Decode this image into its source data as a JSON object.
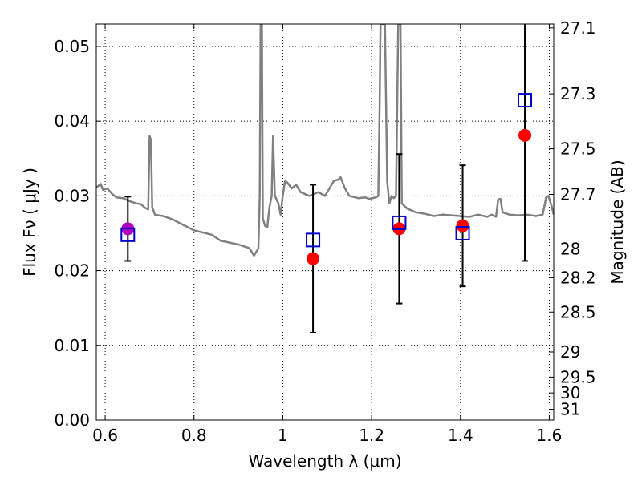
{
  "chart_data": {
    "type": "scatter",
    "xlabel": "Wavelength  λ (μm)",
    "ylabel": "Flux  Fν  ( μJy )",
    "y2label": "Magnitude (AB)",
    "xlim": [
      0.58,
      1.61
    ],
    "ylim": [
      0.0,
      0.053
    ],
    "grid": true,
    "x_ticks": [
      {
        "value": 0.6,
        "label": "0.6"
      },
      {
        "value": 0.8,
        "label": "0.8"
      },
      {
        "value": 1.0,
        "label": "1"
      },
      {
        "value": 1.2,
        "label": "1.2"
      },
      {
        "value": 1.4,
        "label": "1.4"
      },
      {
        "value": 1.6,
        "label": "1.6"
      }
    ],
    "y_ticks": [
      {
        "value": 0.0,
        "label": "0.00"
      },
      {
        "value": 0.01,
        "label": "0.01"
      },
      {
        "value": 0.02,
        "label": "0.02"
      },
      {
        "value": 0.03,
        "label": "0.03"
      },
      {
        "value": 0.04,
        "label": "0.04"
      },
      {
        "value": 0.05,
        "label": "0.05"
      }
    ],
    "mag_ticks": [
      {
        "mag": 27.1,
        "label": "27.1"
      },
      {
        "mag": 27.3,
        "label": "27.3"
      },
      {
        "mag": 27.5,
        "label": "27.5"
      },
      {
        "mag": 27.7,
        "label": "27.7"
      },
      {
        "mag": 28.0,
        "label": "28"
      },
      {
        "mag": 28.2,
        "label": "28.2"
      },
      {
        "mag": 28.5,
        "label": "28.5"
      },
      {
        "mag": 29.0,
        "label": "29"
      },
      {
        "mag": 29.5,
        "label": "29.5"
      },
      {
        "mag": 30.0,
        "label": "30"
      },
      {
        "mag": 31.0,
        "label": "31"
      }
    ],
    "series": [
      {
        "style": "line",
        "color": "#808080",
        "points": [
          [
            0.58,
            0.0311
          ],
          [
            0.59,
            0.0316
          ],
          [
            0.595,
            0.0308
          ],
          [
            0.605,
            0.031
          ],
          [
            0.615,
            0.0303
          ],
          [
            0.625,
            0.0298
          ],
          [
            0.64,
            0.0297
          ],
          [
            0.655,
            0.0293
          ],
          [
            0.67,
            0.029
          ],
          [
            0.68,
            0.0289
          ],
          [
            0.69,
            0.0284
          ],
          [
            0.697,
            0.0282
          ],
          [
            0.7,
            0.038
          ],
          [
            0.703,
            0.0375
          ],
          [
            0.706,
            0.0285
          ],
          [
            0.712,
            0.0275
          ],
          [
            0.73,
            0.0273
          ],
          [
            0.75,
            0.0269
          ],
          [
            0.78,
            0.026
          ],
          [
            0.8,
            0.0254
          ],
          [
            0.84,
            0.0248
          ],
          [
            0.86,
            0.024
          ],
          [
            0.9,
            0.0235
          ],
          [
            0.925,
            0.023
          ],
          [
            0.935,
            0.022
          ],
          [
            0.945,
            0.023
          ],
          [
            0.948,
            0.03
          ],
          [
            0.95,
            0.053
          ],
          [
            0.953,
            0.053
          ],
          [
            0.955,
            0.027
          ],
          [
            0.96,
            0.026
          ],
          [
            0.965,
            0.0258
          ],
          [
            0.97,
            0.0285
          ],
          [
            0.975,
            0.03
          ],
          [
            0.978,
            0.038
          ],
          [
            0.982,
            0.03
          ],
          [
            0.99,
            0.029
          ],
          [
            0.995,
            0.0275
          ],
          [
            1.0,
            0.03
          ],
          [
            1.005,
            0.032
          ],
          [
            1.01,
            0.0318
          ],
          [
            1.02,
            0.031
          ],
          [
            1.03,
            0.0315
          ],
          [
            1.04,
            0.0305
          ],
          [
            1.06,
            0.03
          ],
          [
            1.08,
            0.0305
          ],
          [
            1.095,
            0.03
          ],
          [
            1.105,
            0.031
          ],
          [
            1.115,
            0.032
          ],
          [
            1.125,
            0.0322
          ],
          [
            1.13,
            0.0325
          ],
          [
            1.14,
            0.031
          ],
          [
            1.15,
            0.03
          ],
          [
            1.17,
            0.0297
          ],
          [
            1.185,
            0.0298
          ],
          [
            1.195,
            0.0296
          ],
          [
            1.21,
            0.0298
          ],
          [
            1.215,
            0.03
          ],
          [
            1.218,
            0.042
          ],
          [
            1.22,
            0.053
          ],
          [
            1.23,
            0.053
          ],
          [
            1.235,
            0.032
          ],
          [
            1.24,
            0.029
          ],
          [
            1.245,
            0.03
          ],
          [
            1.25,
            0.0297
          ],
          [
            1.255,
            0.03
          ],
          [
            1.26,
            0.053
          ],
          [
            1.265,
            0.053
          ],
          [
            1.268,
            0.029
          ],
          [
            1.28,
            0.0283
          ],
          [
            1.3,
            0.0278
          ],
          [
            1.32,
            0.0276
          ],
          [
            1.34,
            0.0273
          ],
          [
            1.36,
            0.0275
          ],
          [
            1.38,
            0.0274
          ],
          [
            1.4,
            0.0273
          ],
          [
            1.42,
            0.0272
          ],
          [
            1.44,
            0.0275
          ],
          [
            1.46,
            0.0272
          ],
          [
            1.47,
            0.0275
          ],
          [
            1.48,
            0.0272
          ],
          [
            1.485,
            0.0295
          ],
          [
            1.49,
            0.0296
          ],
          [
            1.495,
            0.0278
          ],
          [
            1.51,
            0.0275
          ],
          [
            1.53,
            0.0274
          ],
          [
            1.55,
            0.0275
          ],
          [
            1.57,
            0.0273
          ],
          [
            1.585,
            0.0275
          ],
          [
            1.593,
            0.0298
          ],
          [
            1.598,
            0.03
          ],
          [
            1.605,
            0.0287
          ],
          [
            1.61,
            0.0275
          ]
        ]
      },
      {
        "style": "errorbar",
        "color": "#000000",
        "points": [
          {
            "x": 0.651,
            "y": 0.0256,
            "err": 0.0043
          },
          {
            "x": 1.068,
            "y": 0.0216,
            "err": 0.0099
          },
          {
            "x": 1.262,
            "y": 0.0256,
            "err": 0.01
          },
          {
            "x": 1.405,
            "y": 0.026,
            "err": 0.0081
          },
          {
            "x": 1.545,
            "y": 0.0381,
            "err": 0.0168
          }
        ]
      },
      {
        "style": "marker-circle",
        "points": [
          {
            "x": 0.651,
            "y": 0.0256,
            "color": "#b000c0"
          },
          {
            "x": 1.068,
            "y": 0.0216,
            "color": "#ff0000"
          },
          {
            "x": 1.262,
            "y": 0.0256,
            "color": "#ff0000"
          },
          {
            "x": 1.405,
            "y": 0.026,
            "color": "#ff0000"
          },
          {
            "x": 1.545,
            "y": 0.0381,
            "color": "#ff0000"
          }
        ]
      },
      {
        "style": "marker-square",
        "color": "#0000cc",
        "points": [
          {
            "x": 0.651,
            "y": 0.0248
          },
          {
            "x": 1.068,
            "y": 0.0241
          },
          {
            "x": 1.262,
            "y": 0.0264
          },
          {
            "x": 1.405,
            "y": 0.025
          },
          {
            "x": 1.545,
            "y": 0.0428
          }
        ]
      }
    ]
  }
}
